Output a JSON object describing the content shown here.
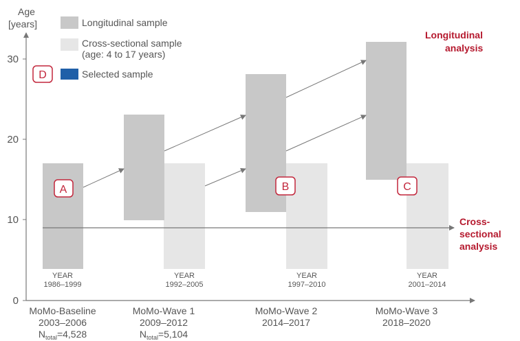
{
  "y_axis": {
    "title_line1": "Age",
    "title_line2": "[years]",
    "ticks": [
      "0",
      "10",
      "20",
      "30"
    ]
  },
  "legend": {
    "longitudinal": "Longitudinal sample",
    "cross_line1": "Cross-sectional sample",
    "cross_line2": "(age: 4 to 17 years)",
    "selected": "Selected sample"
  },
  "badges": {
    "a": "A",
    "b": "B",
    "c": "C",
    "d": "D"
  },
  "annotations": {
    "longitudinal_line1": "Longitudinal",
    "longitudinal_line2": "analysis",
    "cross_line1": "Cross-",
    "cross_line2": "sectional",
    "cross_line3": "analysis"
  },
  "years": [
    {
      "label": "YEAR",
      "range": "1986–1999"
    },
    {
      "label": "YEAR",
      "range": "1992–2005"
    },
    {
      "label": "YEAR",
      "range": "1997–2010"
    },
    {
      "label": "YEAR",
      "range": "2001–2014"
    }
  ],
  "waves": [
    {
      "name": "MoMo-Baseline",
      "period": "2003–2006",
      "n_prefix": "N",
      "n_sub": "total",
      "n_value": "=4,528"
    },
    {
      "name": "MoMo-Wave 1",
      "period": "2009–2012",
      "n_prefix": "N",
      "n_sub": "total",
      "n_value": "=5,104"
    },
    {
      "name": "MoMo-Wave 2",
      "period": "2014–2017"
    },
    {
      "name": "MoMo-Wave 3",
      "period": "2018–2020"
    }
  ],
  "colors": {
    "longitudinal": "#c8c8c8",
    "cross_sectional": "#e6e6e6",
    "selected": "#1f5fa8",
    "accent": "#c2263b"
  }
}
